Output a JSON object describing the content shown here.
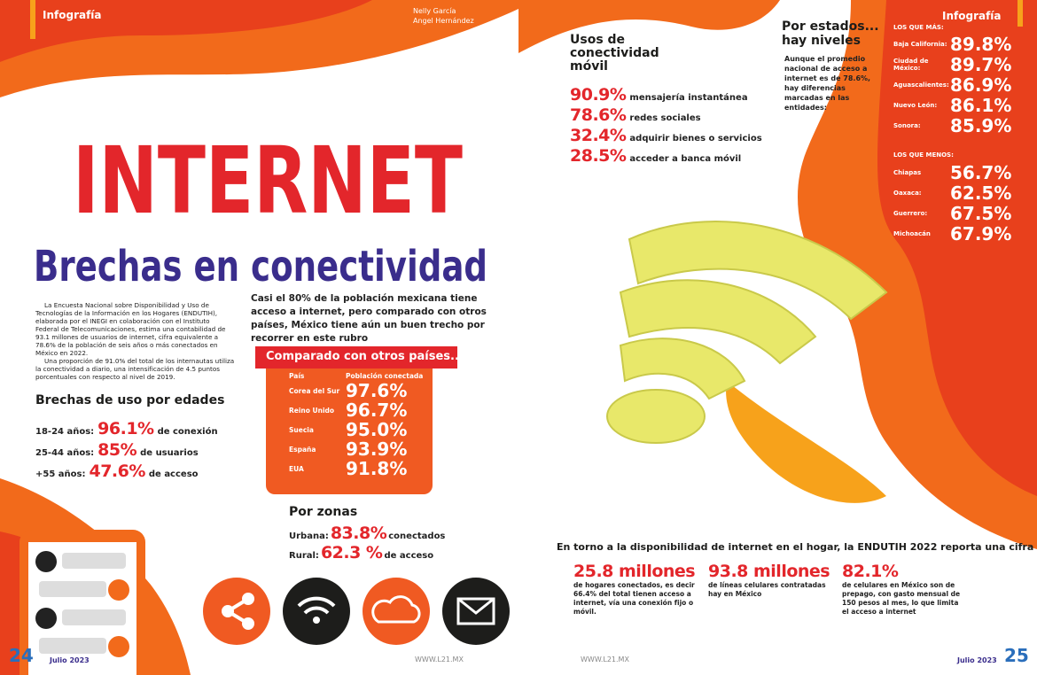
{
  "left_page": {
    "section": "Infografía",
    "authors": [
      "Nelly García",
      "Angel Hernández"
    ],
    "hero_word": "INTERNET",
    "title": "Brechas en conectividad",
    "intro": [
      "La Encuesta Nacional sobre Disponibilidad y Uso de Tecnologías de la Información en los Hogares (ENDUTIH), elaborada por el INEGI en colaboración con el Instituto Federal de Telecomunicaciones, estima una contabilidad de 93.1 millones de usuarios de internet, cifra equivalente a 78.6% de la población de seis años o más conectados en México en 2022.",
      "Una proporción de 91.0% del total de los internautas utiliza la conectividad a diario, una intensificación de 4.5 puntos porcentuales con respecto al nivel de 2019."
    ],
    "lead": "Casi el 80% de la población mexicana tiene acceso a internet, pero comparado con otros países, México tiene aún un buen trecho por recorrer en este rubro",
    "ages": {
      "title": "Brechas de uso por edades",
      "rows": [
        [
          "18-24 años:",
          "96.1%",
          "de conexión"
        ],
        [
          "25-44 años:",
          "85%",
          "de usuarios"
        ],
        [
          "+55 años:",
          "47.6%",
          "de acceso"
        ]
      ]
    },
    "countries": {
      "title": "Comparado con otros países...",
      "headers": [
        "País",
        "Población conectada"
      ],
      "rows": [
        [
          "Corea del Sur",
          "97.6%"
        ],
        [
          "Reino Unido",
          "96.7%"
        ],
        [
          "Suecia",
          "95.0%"
        ],
        [
          "España",
          "93.9%"
        ],
        [
          "EUA",
          "91.8%"
        ]
      ]
    },
    "zones": {
      "title": "Por zonas",
      "rows": [
        [
          "Urbana:",
          "83.8%",
          "conectados"
        ],
        [
          "Rural:",
          "62.3 %",
          "de acceso"
        ]
      ]
    },
    "footer": {
      "page": "24",
      "date": "Julio 2023",
      "url": "WWW.L21.MX"
    }
  },
  "right_page": {
    "section": "Infografía",
    "mobile": {
      "title": "Usos de conectividad móvil",
      "rows": [
        [
          "90.9%",
          "mensajería instantánea"
        ],
        [
          "78.6%",
          "redes sociales"
        ],
        [
          "32.4%",
          "adquirir bienes o servicios"
        ],
        [
          "28.5%",
          "acceder a banca móvil"
        ]
      ]
    },
    "states": {
      "title": "Por estados... hay niveles",
      "text": "Aunque el promedio nacional de acceso a internet es de 78.6%, hay diferencias marcadas en las entidades:",
      "most_label": "LOS QUE MÁS:",
      "most": [
        [
          "Baja California:",
          "89.8%"
        ],
        [
          "Ciudad de México:",
          "89.7%"
        ],
        [
          "Aguascalientes:",
          "86.9%"
        ],
        [
          "Nuevo León:",
          "86.1%"
        ],
        [
          "Sonora:",
          "85.9%"
        ]
      ],
      "least_label": "LOS QUE MENOS:",
      "least": [
        [
          "Chiapas",
          "56.7%"
        ],
        [
          "Oaxaca:",
          "62.5%"
        ],
        [
          "Guerrero:",
          "67.5%"
        ],
        [
          "Michoacán",
          "67.9%"
        ]
      ]
    },
    "home": {
      "intro": "En torno a la disponibilidad de internet en el hogar, la ENDUTIH 2022 reporta una cifra de",
      "stats": [
        {
          "figure": "25.8 millones",
          "text": "de hogares conectados, es decir 66.4% del total tienen acceso a internet, vía una conexión fijo o móvil."
        },
        {
          "figure": "93.8 millones",
          "text": "de líneas celulares contratadas hay en México"
        },
        {
          "figure": "82.1%",
          "text": "de celulares en México son de prepago, con gasto mensual de 150 pesos al mes, lo que limita el acceso a internet"
        }
      ]
    },
    "footer": {
      "page": "25",
      "date": "Julio 2023",
      "url": "WWW.L21.MX"
    }
  }
}
